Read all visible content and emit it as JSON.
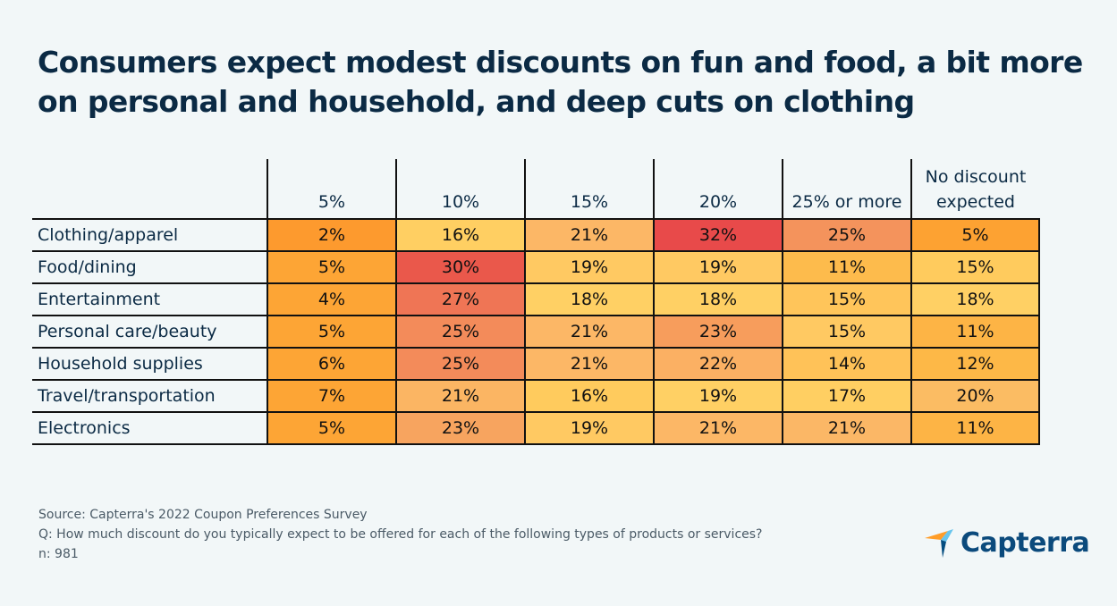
{
  "title": "Consumers expect modest discounts on fun and food, a bit more on personal and household, and deep cuts on clothing",
  "chart_data": {
    "type": "heatmap",
    "title": "Consumers expect modest discounts on fun and food, a bit more on personal and household, and deep cuts on clothing",
    "columns": [
      "5%",
      "10%",
      "15%",
      "20%",
      "25% or more",
      "No discount expected"
    ],
    "rows": [
      "Clothing/apparel",
      "Food/dining",
      "Entertainment",
      "Personal care/beauty",
      "Household supplies",
      "Travel/transportation",
      "Electronics"
    ],
    "values": [
      [
        2,
        16,
        21,
        32,
        25,
        5
      ],
      [
        5,
        30,
        19,
        19,
        11,
        15
      ],
      [
        4,
        27,
        18,
        18,
        15,
        18
      ],
      [
        5,
        25,
        21,
        23,
        15,
        11
      ],
      [
        6,
        25,
        21,
        22,
        14,
        12
      ],
      [
        7,
        21,
        16,
        19,
        17,
        20
      ],
      [
        5,
        23,
        19,
        21,
        21,
        11
      ]
    ],
    "labels": [
      [
        "2%",
        "16%",
        "21%",
        "32%",
        "25%",
        "5%"
      ],
      [
        "5%",
        "30%",
        "19%",
        "19%",
        "11%",
        "15%"
      ],
      [
        "4%",
        "27%",
        "18%",
        "18%",
        "15%",
        "18%"
      ],
      [
        "5%",
        "25%",
        "21%",
        "23%",
        "15%",
        "11%"
      ],
      [
        "6%",
        "25%",
        "21%",
        "22%",
        "14%",
        "12%"
      ],
      [
        "7%",
        "21%",
        "16%",
        "19%",
        "17%",
        "20%"
      ],
      [
        "5%",
        "23%",
        "19%",
        "21%",
        "21%",
        "11%"
      ]
    ],
    "colors": [
      [
        "#fd9a2e",
        "#ffcf62",
        "#fcb766",
        "#e84a4a",
        "#f4935c",
        "#fda232"
      ],
      [
        "#fda535",
        "#ea584b",
        "#ffc962",
        "#ffc962",
        "#fdbb4c",
        "#ffcb5d"
      ],
      [
        "#fda535",
        "#ef7555",
        "#ffd064",
        "#ffd064",
        "#ffc55a",
        "#ffd064"
      ],
      [
        "#fda535",
        "#f38b5a",
        "#fcb766",
        "#f79d5c",
        "#ffc962",
        "#fdb445"
      ],
      [
        "#fda535",
        "#f38b5a",
        "#fcb766",
        "#fbb063",
        "#ffc258",
        "#fdb847"
      ],
      [
        "#fda535",
        "#fbb563",
        "#ffcb5d",
        "#ffd064",
        "#ffcf62",
        "#fbbc63"
      ],
      [
        "#fda535",
        "#f7a45f",
        "#ffc962",
        "#fcb766",
        "#fbb766",
        "#fdb445"
      ]
    ],
    "color_scale": {
      "low": "#fd9a2e",
      "mid": "#ffd064",
      "high": "#e84a4a"
    }
  },
  "notes": {
    "source": "Source: Capterra's 2022 Coupon Preferences Survey",
    "question": "Q: How much discount do you typically expect to be offered for each of the following types of products or services?",
    "n": "n: 981"
  },
  "logo": {
    "text": "Capterra",
    "icon": "capterra-arrow-icon"
  }
}
